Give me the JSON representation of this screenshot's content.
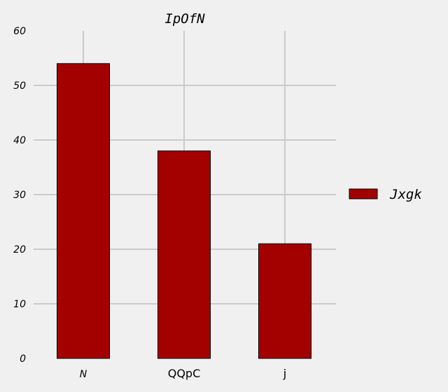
{
  "chart_data": {
    "type": "bar",
    "title": "IpOfN",
    "categories": [
      "N",
      "QQpC",
      "j"
    ],
    "category_italic": [
      true,
      false,
      false
    ],
    "series": [
      {
        "name": "Jxgk",
        "values": [
          54,
          38,
          21
        ],
        "color": "#a30000"
      }
    ],
    "ylim": [
      0,
      60
    ],
    "yticks": [
      0,
      10,
      20,
      30,
      40,
      50,
      60
    ],
    "xlabel": "",
    "ylabel": "",
    "grid": true,
    "legend_position": "right",
    "colors": {
      "background": "#f0f0f0",
      "grid": "#cbcbcb",
      "bar_edge": "#000000"
    }
  }
}
